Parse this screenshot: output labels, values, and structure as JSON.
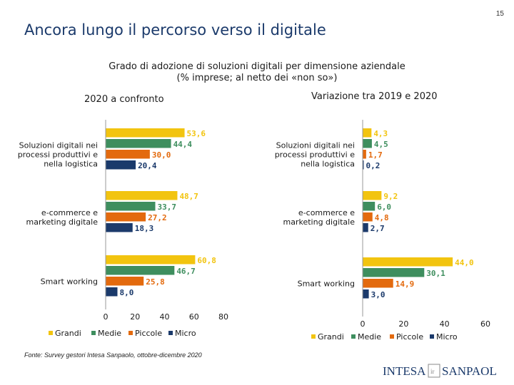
{
  "page": {
    "number": "15",
    "title": "Ancora lungo il percorso verso il digitale",
    "subtitle_line1": "Grado di adozione di soluzioni digitali per dimensione aziendale",
    "subtitle_line2": "(% imprese; al netto dei «non so»)",
    "source": "Fonte: Survey gestori Intesa Sanpaolo, ottobre-dicembre 2020",
    "logo_text_left": "INTESA",
    "logo_text_right": "SANPAOLO"
  },
  "colors": {
    "grandi": "#F2C40F",
    "medie": "#3E8E5E",
    "piccole": "#E36A0E",
    "micro": "#1B3A6B",
    "title": "#1B3A6B"
  },
  "chart_data": [
    {
      "type": "bar",
      "orientation": "horizontal",
      "title": "2020 a confronto",
      "categories": [
        "Soluzioni digitali nei processi produttivi e nella logistica",
        "e-commerce e marketing digitale",
        "Smart working"
      ],
      "series": [
        {
          "name": "Grandi",
          "values": [
            53.6,
            48.7,
            60.8
          ],
          "labels": [
            "53,6",
            "48,7",
            "60,8"
          ]
        },
        {
          "name": "Medie",
          "values": [
            44.4,
            33.7,
            46.7
          ],
          "labels": [
            "44,4",
            "33,7",
            "46,7"
          ]
        },
        {
          "name": "Piccole",
          "values": [
            30.0,
            27.2,
            25.8
          ],
          "labels": [
            "30,0",
            "27,2",
            "25,8"
          ]
        },
        {
          "name": "Micro",
          "values": [
            20.4,
            18.3,
            8.0
          ],
          "labels": [
            "20,4",
            "18,3",
            "8,0"
          ]
        }
      ],
      "xlim": [
        0,
        80
      ],
      "xticks": [
        0,
        20,
        40,
        60,
        80
      ],
      "legend": "bottom"
    },
    {
      "type": "bar",
      "orientation": "horizontal",
      "title": "Variazione tra 2019 e 2020",
      "categories": [
        "Soluzioni digitali nei processi produttivi e nella logistica",
        "e-commerce e marketing digitale",
        "Smart working"
      ],
      "series": [
        {
          "name": "Grandi",
          "values": [
            4.3,
            9.2,
            44.0
          ],
          "labels": [
            "4,3",
            "9,2",
            "44,0"
          ]
        },
        {
          "name": "Medie",
          "values": [
            4.5,
            6.0,
            30.1
          ],
          "labels": [
            "4,5",
            "6,0",
            "30,1"
          ]
        },
        {
          "name": "Piccole",
          "values": [
            1.7,
            4.8,
            14.9
          ],
          "labels": [
            "1,7",
            "4,8",
            "14,9"
          ]
        },
        {
          "name": "Micro",
          "values": [
            0.2,
            2.7,
            3.0
          ],
          "labels": [
            "0,2",
            "2,7",
            "3,0"
          ]
        }
      ],
      "xlim": [
        0,
        60
      ],
      "xticks": [
        0,
        20,
        40,
        60
      ],
      "legend": "bottom"
    }
  ]
}
